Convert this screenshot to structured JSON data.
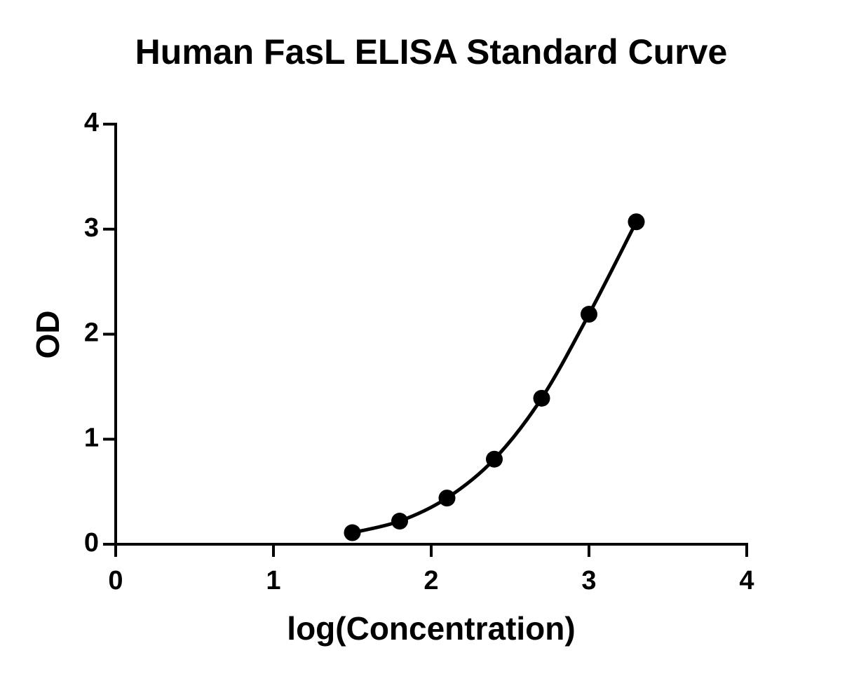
{
  "chart_data": {
    "type": "line",
    "title": "Human FasL ELISA Standard  Curve",
    "x_label": "log(Concentration)",
    "y_label": "OD",
    "x": [
      1.5,
      1.8,
      2.1,
      2.4,
      2.7,
      3.0,
      3.3
    ],
    "series": [
      {
        "name": "OD",
        "color": "#000000",
        "values": [
          0.11,
          0.22,
          0.44,
          0.81,
          1.39,
          2.19,
          3.07
        ]
      }
    ],
    "xlim": [
      0,
      4
    ],
    "xticks": [
      0,
      1,
      2,
      3,
      4
    ],
    "ylim": [
      0,
      4
    ],
    "yticks": [
      0,
      1,
      2,
      3,
      4
    ],
    "grid": false
  }
}
